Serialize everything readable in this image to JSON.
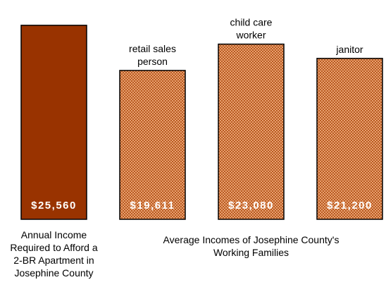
{
  "chart_data": {
    "type": "bar",
    "categories": [
      [
        "Annual Income",
        "Required to Afford a",
        "2-BR Apartment in",
        "Josephine County"
      ],
      [
        "retail sales",
        "person"
      ],
      [
        "child care",
        "worker"
      ],
      [
        "janitor"
      ]
    ],
    "values": [
      25560,
      19611,
      23080,
      21200
    ],
    "value_labels": [
      "$25,560",
      "$19,611",
      "$23,080",
      "$21,200"
    ],
    "group_label": [
      "Average Incomes of Josephine County's",
      "Working Families"
    ],
    "ylim": [
      0,
      27500
    ],
    "colors": {
      "required": "#993300",
      "average_base": "#e8a070",
      "average_dot": "#b85a20",
      "outline": "#000000"
    }
  }
}
